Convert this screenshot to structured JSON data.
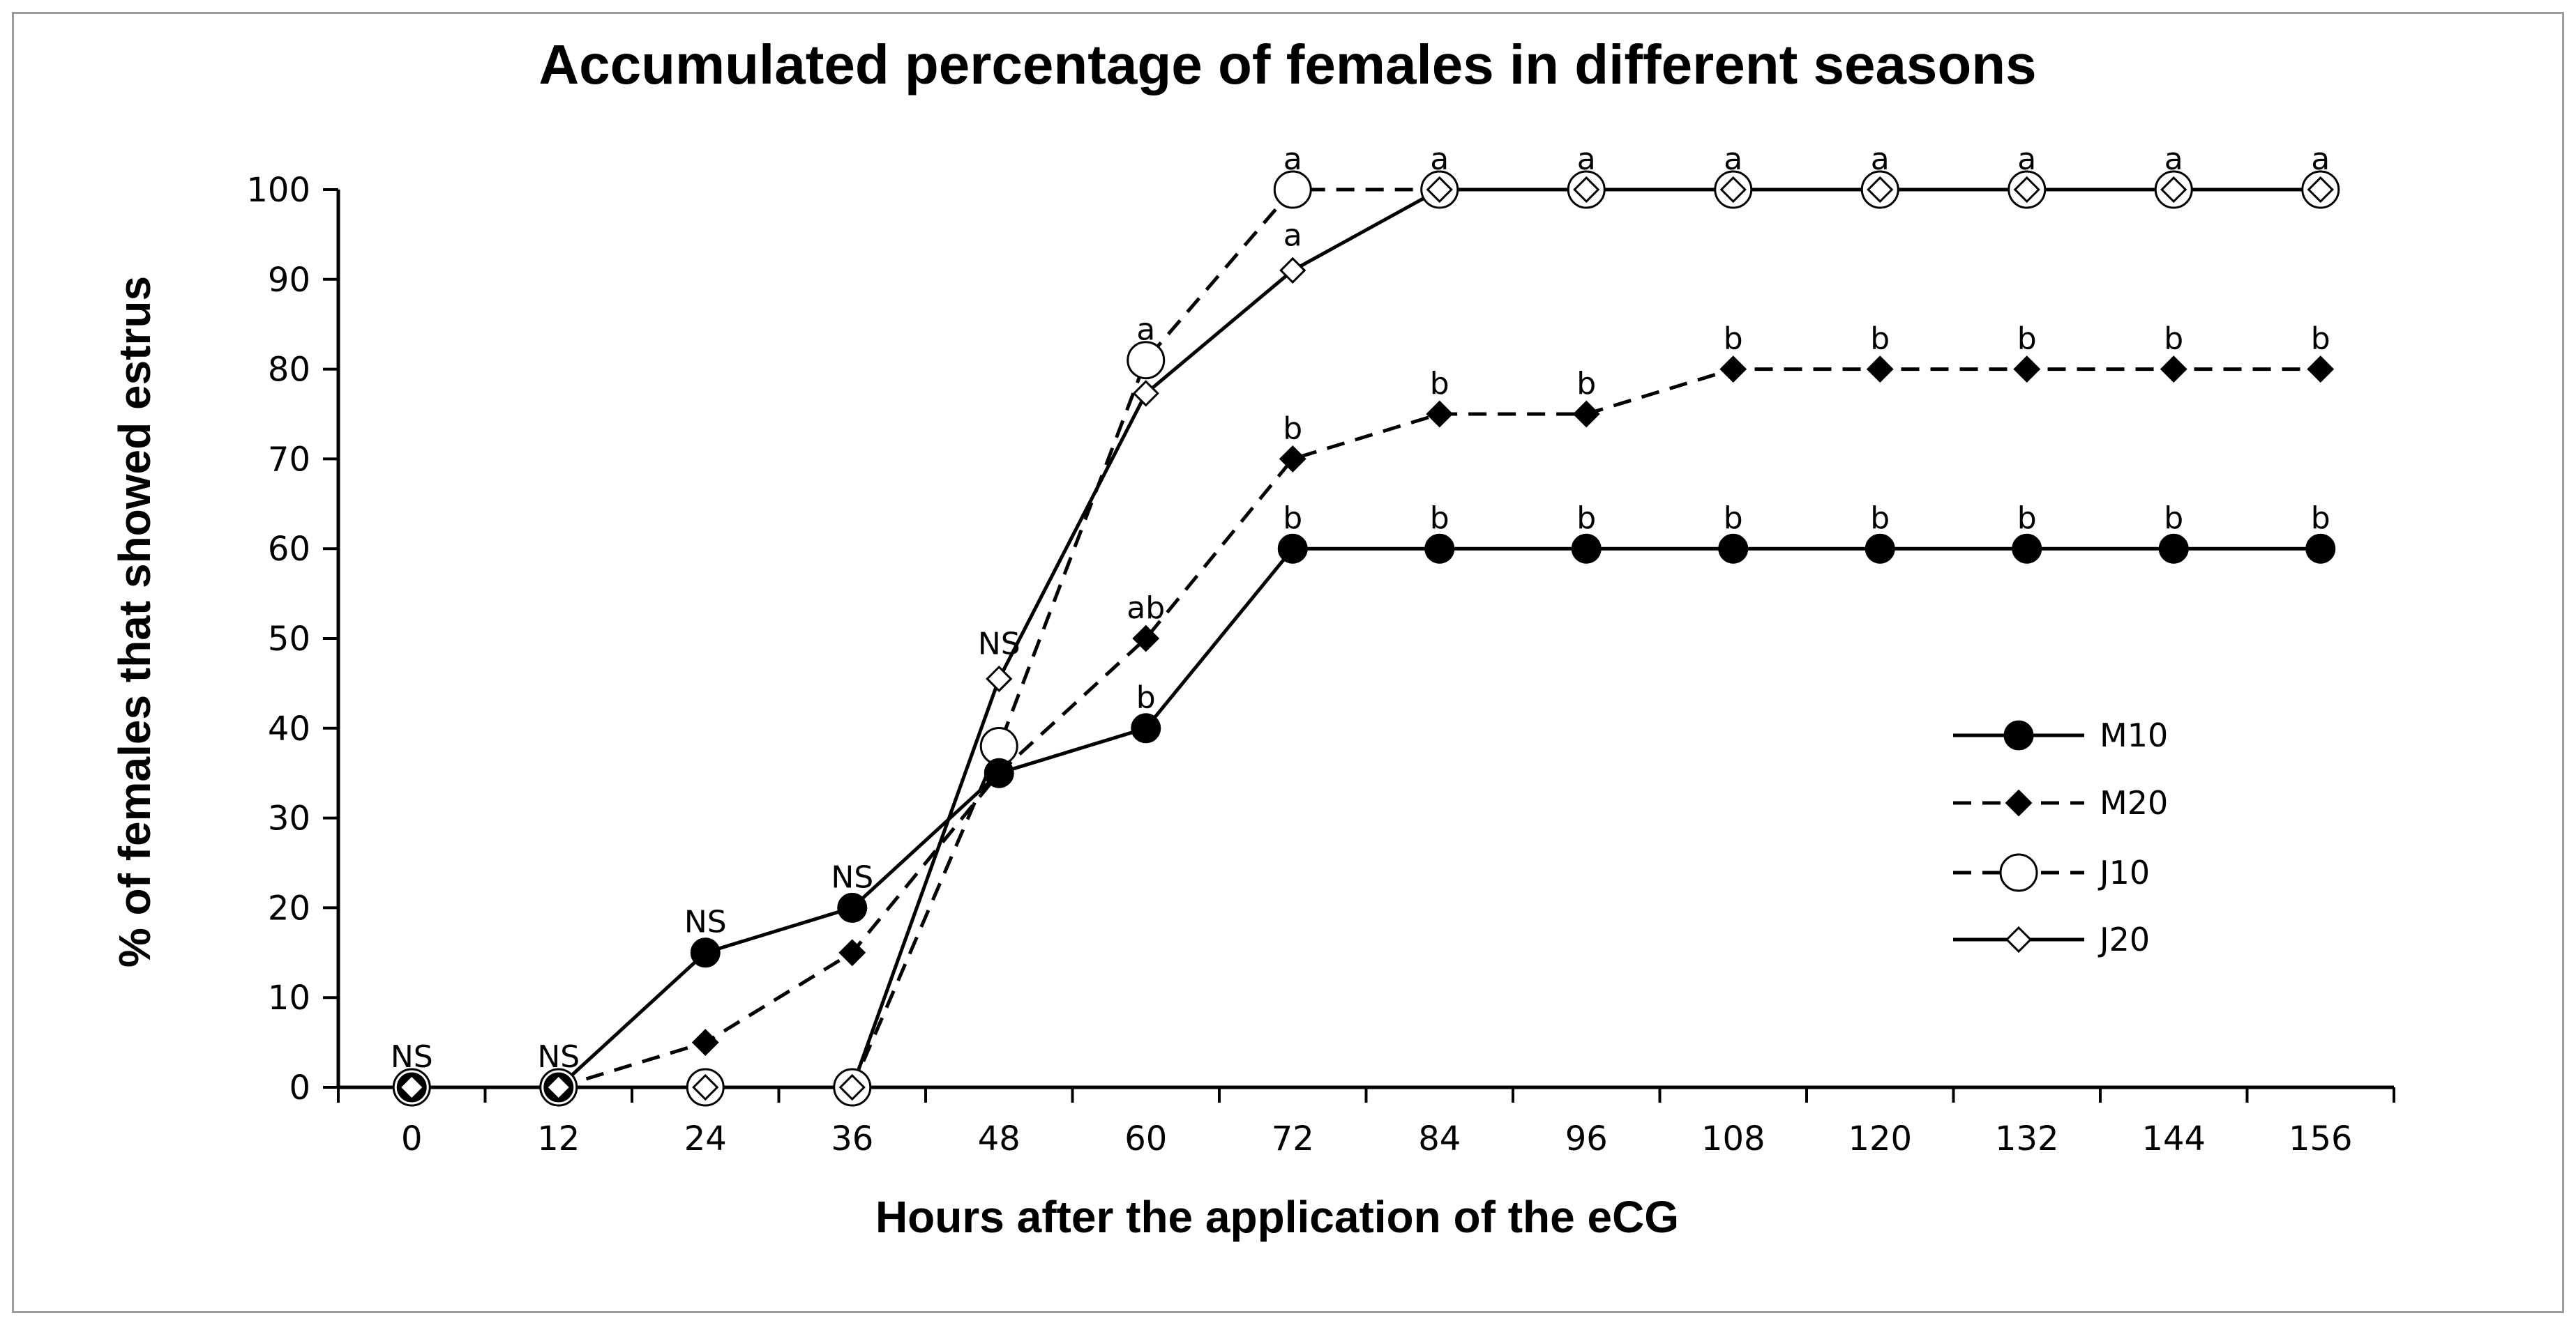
{
  "chart_data": {
    "type": "line",
    "title": "Accumulated percentage of females in different seasons",
    "xlabel": "Hours after the application of the eCG",
    "ylabel": "% of females that showed estrus",
    "x": [
      0,
      12,
      24,
      36,
      48,
      60,
      72,
      84,
      96,
      108,
      120,
      132,
      144,
      156
    ],
    "x_tick_labels": [
      "0",
      "12",
      "24",
      "36",
      "48",
      "60",
      "72",
      "84",
      "96",
      "108",
      "120",
      "132",
      "144",
      "156"
    ],
    "y_tick_labels": [
      "0",
      "10",
      "20",
      "30",
      "40",
      "50",
      "60",
      "70",
      "80",
      "90",
      "100"
    ],
    "ylim": [
      0,
      100
    ],
    "xlim": [
      -6,
      162
    ],
    "grid": false,
    "legend_position": "right-center",
    "series": [
      {
        "name": "M10",
        "marker": "filled-circle",
        "line": "solid",
        "values": [
          0,
          0,
          15,
          20,
          35,
          40,
          60,
          60,
          60,
          60,
          60,
          60,
          60,
          60
        ]
      },
      {
        "name": "M20",
        "marker": "filled-diamond",
        "line": "dashed",
        "values": [
          0,
          0,
          5,
          15,
          35,
          50,
          70,
          75,
          75,
          80,
          80,
          80,
          80,
          80
        ]
      },
      {
        "name": "J10",
        "marker": "open-circle",
        "line": "dashed",
        "values": [
          0,
          0,
          0,
          0,
          38,
          81,
          100,
          100,
          100,
          100,
          100,
          100,
          100,
          100
        ]
      },
      {
        "name": "J20",
        "marker": "open-diamond",
        "line": "solid",
        "values": [
          0,
          0,
          0,
          0,
          45.5,
          77.3,
          91,
          100,
          100,
          100,
          100,
          100,
          100,
          100
        ]
      }
    ],
    "annotations": [
      {
        "x": 0,
        "y": 3.5,
        "text": "NS"
      },
      {
        "x": 12,
        "y": 3.5,
        "text": "NS"
      },
      {
        "x": 24,
        "y": 18.5,
        "text": "NS"
      },
      {
        "x": 36,
        "y": 23.5,
        "text": "NS"
      },
      {
        "x": 48,
        "y": 49.5,
        "text": "NS"
      },
      {
        "x": 60,
        "y": 84.5,
        "text": "a"
      },
      {
        "x": 60,
        "y": 53.5,
        "text": "ab"
      },
      {
        "x": 60,
        "y": 43.5,
        "text": "b"
      },
      {
        "x": 72,
        "y": 103.5,
        "text": "a"
      },
      {
        "x": 72,
        "y": 95.0,
        "text": "a"
      },
      {
        "x": 72,
        "y": 73.5,
        "text": "b"
      },
      {
        "x": 72,
        "y": 63.5,
        "text": "b"
      },
      {
        "x": 84,
        "y": 103.5,
        "text": "a"
      },
      {
        "x": 84,
        "y": 78.5,
        "text": "b"
      },
      {
        "x": 84,
        "y": 63.5,
        "text": "b"
      },
      {
        "x": 96,
        "y": 103.5,
        "text": "a"
      },
      {
        "x": 96,
        "y": 78.5,
        "text": "b"
      },
      {
        "x": 96,
        "y": 63.5,
        "text": "b"
      },
      {
        "x": 108,
        "y": 103.5,
        "text": "a"
      },
      {
        "x": 108,
        "y": 83.5,
        "text": "b"
      },
      {
        "x": 108,
        "y": 63.5,
        "text": "b"
      },
      {
        "x": 120,
        "y": 103.5,
        "text": "a"
      },
      {
        "x": 120,
        "y": 83.5,
        "text": "b"
      },
      {
        "x": 120,
        "y": 63.5,
        "text": "b"
      },
      {
        "x": 132,
        "y": 103.5,
        "text": "a"
      },
      {
        "x": 132,
        "y": 83.5,
        "text": "b"
      },
      {
        "x": 132,
        "y": 63.5,
        "text": "b"
      },
      {
        "x": 144,
        "y": 103.5,
        "text": "a"
      },
      {
        "x": 144,
        "y": 83.5,
        "text": "b"
      },
      {
        "x": 144,
        "y": 63.5,
        "text": "b"
      },
      {
        "x": 156,
        "y": 103.5,
        "text": "a"
      },
      {
        "x": 156,
        "y": 83.5,
        "text": "b"
      },
      {
        "x": 156,
        "y": 63.5,
        "text": "b"
      }
    ]
  }
}
